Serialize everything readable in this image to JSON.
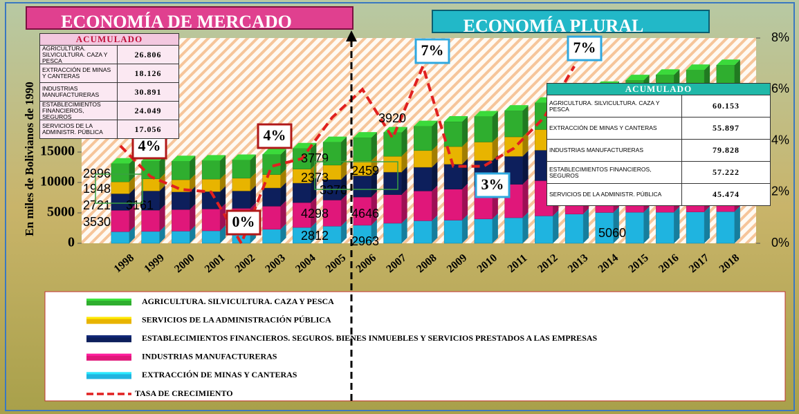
{
  "chart_data": {
    "type": "bar",
    "stacked": true,
    "ylabel": "En miles de Bolivianos de 1990",
    "categories": [
      "1998",
      "1999",
      "2000",
      "2001",
      "2002",
      "2003",
      "2004",
      "2005",
      "2006",
      "2007",
      "2008",
      "2009",
      "2010",
      "2011",
      "2012",
      "2013",
      "2014",
      "2015",
      "2016",
      "2017",
      "2018"
    ],
    "series": [
      {
        "name": "EXTRACCIÓN DE MINAS Y CANTERAS",
        "color": "#1fb4e0",
        "values": [
          1900,
          1950,
          2000,
          2050,
          2100,
          2300,
          2600,
          2812,
          2963,
          3300,
          3700,
          3800,
          4000,
          4200,
          4500,
          4800,
          5060,
          5100,
          5100,
          5150,
          5200
        ]
      },
      {
        "name": "INDUSTRIAS  MANUFACTURERAS",
        "color": "#e0177a",
        "values": [
          3530,
          3500,
          3550,
          3600,
          3650,
          3800,
          4100,
          4298,
          4646,
          4700,
          4900,
          5100,
          5300,
          5500,
          5800,
          6100,
          6400,
          6700,
          7000,
          7200,
          7400
        ]
      },
      {
        "name": "ESTABLECIMIENTOS FINANCIEROS. SEGUROS. BIENES  INMUEBLES Y SERVICIOS PRESTADOS A LAS EMPRESAS",
        "color": "#0d1f5c",
        "values": [
          2721,
          3161,
          2900,
          2850,
          2850,
          3000,
          3200,
          3370,
          3500,
          3700,
          3900,
          4100,
          4300,
          4600,
          5000,
          5400,
          5800,
          6200,
          6500,
          6800,
          7100
        ]
      },
      {
        "name": "SERVICIOS DE LA ADMINISTRACIÓN PÚBLICA",
        "color": "#e8b400",
        "values": [
          1948,
          1980,
          2000,
          2050,
          2100,
          2200,
          2300,
          2373,
          2459,
          2600,
          2750,
          2900,
          3050,
          3200,
          3400,
          3600,
          3800,
          4000,
          4200,
          4350,
          4500
        ]
      },
      {
        "name": "AGRICULTURA. SILVICULTURA. CAZA Y PESCA",
        "color": "#2fae2f",
        "values": [
          2996,
          2950,
          3050,
          3050,
          3000,
          3300,
          3400,
          3779,
          3800,
          3920,
          4000,
          4100,
          4200,
          4300,
          4400,
          4500,
          4650,
          4800,
          4900,
          5000,
          5100
        ]
      },
      {
        "name": "TASA DE CRECIMIENTO",
        "color": "#e02020",
        "type": "line",
        "axis": "y2",
        "values": [
          3.8,
          2.6,
          2.1,
          2.0,
          0,
          3.0,
          3.3,
          4.9,
          6.0,
          4.1,
          6.9,
          3.0,
          3.0,
          3.7,
          4.9,
          6.9,
          null,
          null,
          null,
          null,
          null
        ]
      }
    ],
    "ylim": [
      0,
      33750
    ],
    "yticks": [
      0,
      5000,
      10000,
      15000
    ],
    "y2lim": [
      0,
      8
    ],
    "y2ticks": [
      {
        "value": 0,
        "label": "0%"
      },
      {
        "value": 2,
        "label": "2%"
      },
      {
        "value": 4,
        "label": "4%"
      },
      {
        "value": 6,
        "label": "6%"
      },
      {
        "value": 8,
        "label": "8%"
      }
    ],
    "annotations": [
      "2996",
      "1948",
      "2721",
      "3530",
      "3161",
      "3779",
      "2373",
      "3370",
      "4298",
      "2812",
      "2459",
      "4646",
      "2963",
      "3920",
      "5060"
    ],
    "rate_callouts": [
      "4%",
      "0%",
      "4%",
      "7%",
      "3%",
      "7%"
    ]
  },
  "banners": [
    "ECONOMÍA DE MERCADO",
    "ECONOMÍA PLURAL"
  ],
  "tables": [
    {
      "header": "ACUMULADO",
      "rows": [
        [
          "AGRICULTURA. SILVICULTURA. CAZA Y PESCA",
          "26.806"
        ],
        [
          "EXTRACCIÓN DE MINAS Y CANTERAS",
          "18.126"
        ],
        [
          "INDUSTRIAS MANUFACTURERAS",
          "30.891"
        ],
        [
          "ESTABLECIMIENTOS FINANCIEROS, SEGUROS",
          "24.049"
        ],
        [
          "SERVICIOS DE LA ADMINISTR. PÚBLICA",
          "17.056"
        ]
      ]
    },
    {
      "header": "ACUMULADO",
      "rows": [
        [
          "AGRICULTURA. SILVICULTURA. CAZA Y PESCA",
          "60.153"
        ],
        [
          "EXTRACCIÓN DE MINAS Y CANTERAS",
          "55.897"
        ],
        [
          "INDUSTRIAS MANUFACTURERAS",
          "79.828"
        ],
        [
          "ESTABLECIMIENTOS FINANCIEROS, SEGUROS",
          "57.222"
        ],
        [
          "SERVICIOS DE LA ADMINISTR. PÚBLICA",
          "45.474"
        ]
      ]
    }
  ]
}
